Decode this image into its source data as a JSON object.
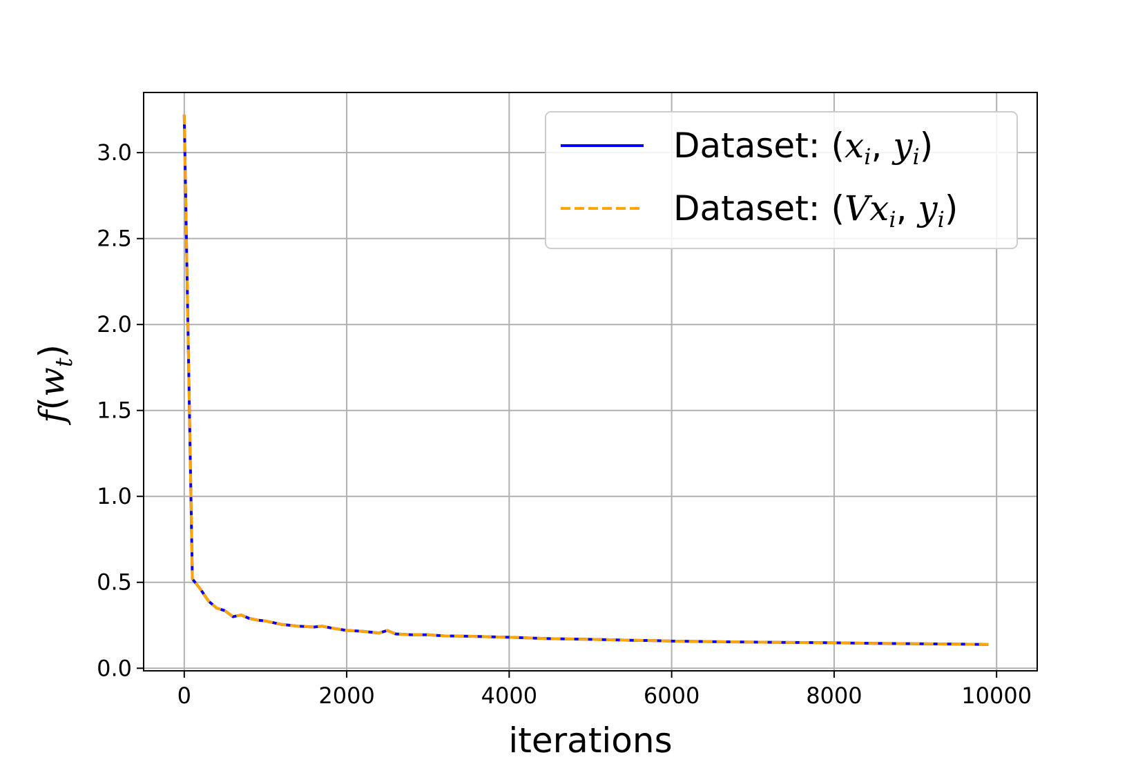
{
  "chart_data": {
    "type": "line",
    "title": "",
    "xlabel": "iterations",
    "ylabel": "f(w_t)",
    "xlim": [
      -500,
      10500
    ],
    "ylim": [
      -0.015,
      3.35
    ],
    "xticks": [
      0,
      2000,
      4000,
      6000,
      8000,
      10000
    ],
    "xtick_labels": [
      "0",
      "2000",
      "4000",
      "6000",
      "8000",
      "10000"
    ],
    "yticks": [
      0.0,
      0.5,
      1.0,
      1.5,
      2.0,
      2.5,
      3.0
    ],
    "ytick_labels": [
      "0.0",
      "0.5",
      "1.0",
      "1.5",
      "2.0",
      "2.5",
      "3.0"
    ],
    "grid": true,
    "legend_position": "upper-right",
    "series": [
      {
        "name": "Dataset: (x_i, y_i)",
        "color": "#0000ff",
        "style": "solid",
        "x": [
          0,
          100,
          200,
          300,
          400,
          500,
          600,
          700,
          800,
          900,
          1000,
          1200,
          1400,
          1600,
          1700,
          1800,
          2000,
          2200,
          2400,
          2500,
          2600,
          2800,
          3000,
          3200,
          3500,
          4000,
          4500,
          5000,
          5500,
          5800,
          6000,
          6500,
          7000,
          7500,
          8000,
          8500,
          9000,
          9500,
          9900
        ],
        "y": [
          3.22,
          0.52,
          0.46,
          0.39,
          0.35,
          0.335,
          0.3,
          0.31,
          0.29,
          0.28,
          0.275,
          0.255,
          0.245,
          0.24,
          0.245,
          0.235,
          0.22,
          0.215,
          0.205,
          0.22,
          0.2,
          0.195,
          0.195,
          0.188,
          0.186,
          0.18,
          0.172,
          0.168,
          0.163,
          0.161,
          0.158,
          0.155,
          0.152,
          0.15,
          0.148,
          0.145,
          0.143,
          0.141,
          0.138
        ]
      },
      {
        "name": "Dataset: (Vx_i, y_i)",
        "color": "#ffa500",
        "style": "dashed",
        "x": [
          0,
          100,
          200,
          300,
          400,
          500,
          600,
          700,
          800,
          900,
          1000,
          1200,
          1400,
          1600,
          1700,
          1800,
          2000,
          2200,
          2400,
          2500,
          2600,
          2800,
          3000,
          3200,
          3500,
          4000,
          4500,
          5000,
          5500,
          5800,
          6000,
          6500,
          7000,
          7500,
          8000,
          8500,
          9000,
          9500,
          9900
        ],
        "y": [
          3.22,
          0.52,
          0.46,
          0.39,
          0.35,
          0.335,
          0.3,
          0.31,
          0.29,
          0.28,
          0.275,
          0.255,
          0.245,
          0.24,
          0.245,
          0.235,
          0.22,
          0.215,
          0.205,
          0.22,
          0.2,
          0.195,
          0.195,
          0.188,
          0.186,
          0.18,
          0.172,
          0.168,
          0.163,
          0.161,
          0.158,
          0.155,
          0.152,
          0.15,
          0.148,
          0.145,
          0.143,
          0.141,
          0.138
        ]
      }
    ],
    "legend": {
      "entry1": {
        "prefix": "Dataset: (",
        "v": "",
        "x": "x",
        "x_sub": "i",
        "comma": ", ",
        "y": "y",
        "y_sub": "i",
        "suffix": ")"
      },
      "entry2": {
        "prefix": "Dataset: (",
        "v": "V",
        "x": "x",
        "x_sub": "i",
        "comma": ", ",
        "y": "y",
        "y_sub": "i",
        "suffix": ")"
      }
    },
    "ylabel_parts": {
      "f": "f",
      "open": "(",
      "w": "w",
      "sub": "t",
      "close": ")"
    }
  }
}
